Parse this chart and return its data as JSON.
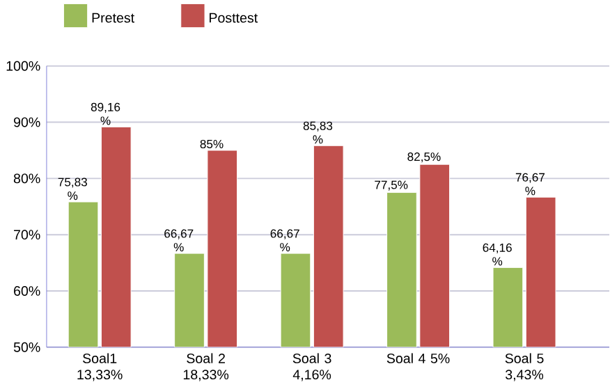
{
  "chart_data": {
    "type": "bar",
    "categories": [
      "Soal1 13,33%",
      "Soal 2 18,33%",
      "Soal 3 4,16%",
      "Soal 4 5%",
      "Soal 5 3,43%"
    ],
    "series": [
      {
        "name": "Pretest",
        "color": "#9bbb59",
        "values": [
          75.83,
          66.67,
          66.67,
          77.5,
          64.16
        ],
        "value_labels": [
          "75,83 %",
          "66,67 %",
          "66,67 %",
          "77,5%",
          "64,16 %"
        ]
      },
      {
        "name": "Posttest",
        "color": "#c0504d",
        "values": [
          89.16,
          85,
          85.83,
          82.5,
          76.67
        ],
        "value_labels": [
          "89,16 %",
          "85%",
          "85,83 %",
          "82,5%",
          "76,67 %"
        ]
      }
    ],
    "ylim": [
      50,
      100
    ],
    "yticks": [
      {
        "value": 50,
        "label": "50%"
      },
      {
        "value": 60,
        "label": "60%"
      },
      {
        "value": 70,
        "label": "70%"
      },
      {
        "value": 80,
        "label": "80%"
      },
      {
        "value": 90,
        "label": "90%"
      },
      {
        "value": 100,
        "label": "100%"
      }
    ],
    "grid": "y",
    "legend": "top"
  }
}
